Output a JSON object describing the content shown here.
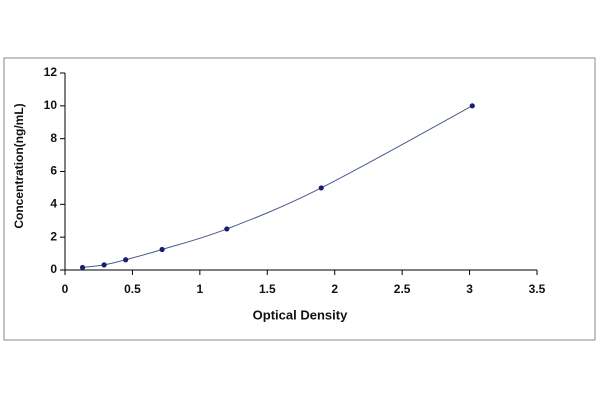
{
  "chart_data": {
    "type": "scatter",
    "x_label": "Optical Density",
    "y_label": "Concentration(ng/mL)",
    "x": [
      0.13,
      0.29,
      0.45,
      0.72,
      1.2,
      1.9,
      3.02
    ],
    "values": [
      0.156,
      0.312,
      0.625,
      1.25,
      2.5,
      5,
      10
    ],
    "color": "#1c1c6e",
    "line_color": "#4a5a8c",
    "fit_line": true,
    "xlim": [
      0,
      3.5
    ],
    "xticks": [
      0,
      0.5,
      1,
      1.5,
      2,
      2.5,
      3,
      3.5
    ],
    "ylim": [
      0,
      12
    ],
    "yticks": [
      0,
      2,
      4,
      6,
      8,
      10,
      12
    ]
  }
}
